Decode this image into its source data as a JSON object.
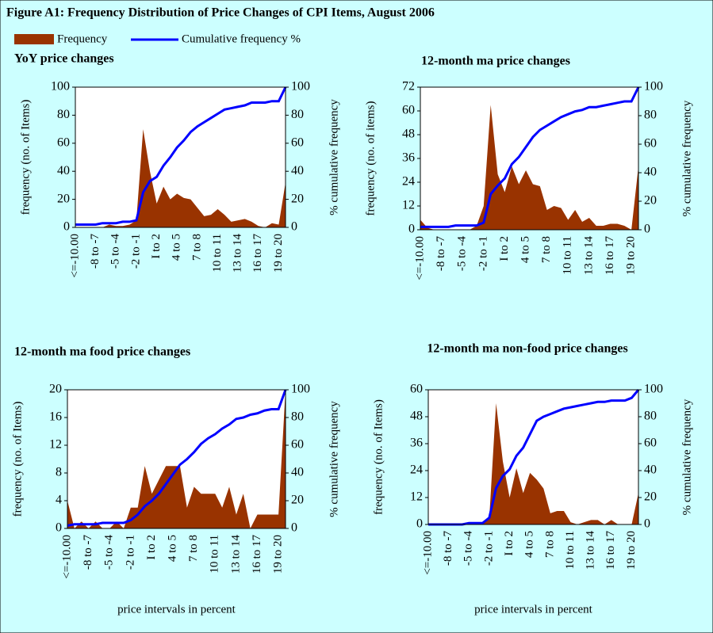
{
  "title": "Figure A1: Frequency Distribution of Price Changes of CPI Items, August 2006",
  "chart_data": [
    {
      "type": "combo",
      "title": "YoY price changes",
      "ylabel": "frequency (no. of Items)",
      "y2label": "% cumulative frequency",
      "categories": [
        "<=-10.00",
        null,
        null,
        "-8 to -7",
        null,
        null,
        "-5 to -4",
        null,
        null,
        "-2 to -1",
        null,
        null,
        "I to 2",
        null,
        null,
        "4 to 5",
        null,
        null,
        "7 to 8",
        null,
        null,
        "10 to 11",
        null,
        null,
        "13 to 14",
        null,
        null,
        "16 to 17",
        null,
        null,
        "19 to 20",
        null
      ],
      "series": [
        {
          "name": "Frequency",
          "type": "area",
          "color": "#993300",
          "values": [
            0,
            0,
            0,
            0,
            0,
            2,
            1,
            1,
            2,
            5,
            70,
            40,
            17,
            29,
            20,
            24,
            21,
            20,
            14,
            8,
            9,
            13,
            9,
            4,
            5,
            6,
            4,
            1,
            0,
            3,
            2,
            32
          ]
        },
        {
          "name": "Cumulative frequency %",
          "type": "line",
          "axis": "y2",
          "color": "#0000ff",
          "values": [
            2,
            2,
            2,
            2,
            3,
            3,
            3,
            4,
            4,
            5,
            25,
            33,
            36,
            44,
            50,
            57,
            62,
            68,
            72,
            75,
            78,
            81,
            84,
            85,
            86,
            87,
            89,
            89,
            89,
            90,
            90,
            100
          ]
        }
      ],
      "ylim": [
        0,
        100
      ],
      "yticks": [
        0,
        20,
        40,
        60,
        80,
        100
      ],
      "y2lim": [
        0,
        100
      ],
      "y2ticks": [
        0,
        20,
        40,
        60,
        80,
        100
      ]
    },
    {
      "type": "combo",
      "title": "12-month ma price changes",
      "ylabel": "frequency (no. of items)",
      "y2label": "% cumulative frequency",
      "categories": [
        "<=-10.00",
        null,
        null,
        "-8 to -7",
        null,
        null,
        "-5 to -4",
        null,
        null,
        "-2 to -1",
        null,
        null,
        "I to 2",
        null,
        null,
        "4 to 5",
        null,
        null,
        "7 to 8",
        null,
        null,
        "10 to 11",
        null,
        null,
        "13 to 14",
        null,
        null,
        "16 to 17",
        null,
        null,
        "19 to 20",
        null
      ],
      "series": [
        {
          "name": "Frequency",
          "type": "area",
          "color": "#993300",
          "values": [
            5,
            1,
            0,
            0,
            0,
            0,
            0,
            0,
            2,
            12,
            63,
            28,
            19,
            32,
            23,
            30,
            23,
            22,
            10,
            12,
            11,
            5,
            10,
            4,
            6,
            2,
            2,
            3,
            3,
            2,
            0,
            32
          ]
        },
        {
          "name": "Cumulative frequency %",
          "type": "line",
          "axis": "y2",
          "color": "#0000ff",
          "values": [
            2,
            2,
            2,
            2,
            2,
            3,
            3,
            3,
            3,
            5,
            25,
            31,
            36,
            46,
            51,
            58,
            65,
            70,
            73,
            76,
            79,
            81,
            83,
            84,
            86,
            86,
            87,
            88,
            89,
            90,
            90,
            100
          ]
        }
      ],
      "ylim": [
        0,
        72
      ],
      "yticks": [
        0,
        12,
        24,
        36,
        48,
        60,
        72
      ],
      "y2lim": [
        0,
        100
      ],
      "y2ticks": [
        0,
        20,
        40,
        60,
        80,
        100
      ]
    },
    {
      "type": "combo",
      "title": "12-month ma food price changes",
      "ylabel": "frequency (no. of Items)",
      "y2label": "% cumulative frequency",
      "xlabel": "price intervals in percent",
      "categories": [
        "<=-10.00",
        null,
        null,
        "-8 to -7",
        null,
        null,
        "-5 to -4",
        null,
        null,
        "-2 to -1",
        null,
        null,
        "I to 2",
        null,
        null,
        "4 to 5",
        null,
        null,
        "7 to 8",
        null,
        null,
        "10 to 11",
        null,
        null,
        "13 to 14",
        null,
        null,
        "16 to 17",
        null,
        null,
        "19 to 20",
        null
      ],
      "series": [
        {
          "name": "Frequency",
          "type": "area",
          "color": "#993300",
          "values": [
            4,
            0,
            1,
            0,
            1,
            0,
            0,
            1,
            0,
            3,
            3,
            9,
            5,
            7,
            9,
            9,
            9,
            3,
            6,
            5,
            5,
            5,
            3,
            6,
            2,
            5,
            0,
            2,
            2,
            2,
            2,
            20
          ]
        },
        {
          "name": "Cumulative frequency %",
          "type": "line",
          "axis": "y2",
          "color": "#0000ff",
          "values": [
            2,
            3,
            3,
            3,
            3,
            4,
            4,
            4,
            4,
            6,
            10,
            16,
            20,
            25,
            32,
            39,
            46,
            50,
            55,
            61,
            65,
            68,
            72,
            75,
            79,
            80,
            82,
            83,
            85,
            86,
            86,
            100
          ]
        }
      ],
      "ylim": [
        0,
        20
      ],
      "yticks": [
        0,
        4,
        8,
        12,
        16,
        20
      ],
      "y2lim": [
        0,
        100
      ],
      "y2ticks": [
        0,
        20,
        40,
        60,
        80,
        100
      ]
    },
    {
      "type": "combo",
      "title": "12-month ma non-food price changes",
      "ylabel": "frequency (no. of Items)",
      "y2label": "% cumulative frequency",
      "xlabel": "price intervals in percent",
      "categories": [
        "<=-10.00",
        null,
        null,
        "-8 to -7",
        null,
        null,
        "-5 to -4",
        null,
        null,
        "-2 to -1",
        null,
        null,
        "I to 2",
        null,
        null,
        "4 to 5",
        null,
        null,
        "7 to 8",
        null,
        null,
        "10 to 11",
        null,
        null,
        "13 to 14",
        null,
        null,
        "16 to 17",
        null,
        null,
        "19 to 20",
        null
      ],
      "series": [
        {
          "name": "Frequency",
          "type": "area",
          "color": "#993300",
          "values": [
            0,
            0,
            0,
            0,
            0,
            0,
            0,
            0,
            0,
            3,
            54,
            28,
            12,
            25,
            14,
            23,
            20,
            16,
            5,
            6,
            6,
            1,
            0,
            1,
            2,
            2,
            0,
            2,
            0,
            0,
            0,
            14
          ]
        },
        {
          "name": "Cumulative frequency %",
          "type": "line",
          "axis": "y2",
          "color": "#0000ff",
          "values": [
            0,
            0,
            0,
            0,
            0,
            0,
            1,
            1,
            1,
            5,
            27,
            36,
            41,
            51,
            57,
            67,
            77,
            80,
            82,
            84,
            86,
            87,
            88,
            89,
            90,
            91,
            91,
            92,
            92,
            92,
            94,
            100
          ]
        }
      ],
      "ylim": [
        0,
        60
      ],
      "yticks": [
        0,
        12,
        24,
        36,
        48,
        60
      ],
      "y2lim": [
        0,
        100
      ],
      "y2ticks": [
        0,
        20,
        40,
        60,
        80,
        100
      ]
    }
  ]
}
